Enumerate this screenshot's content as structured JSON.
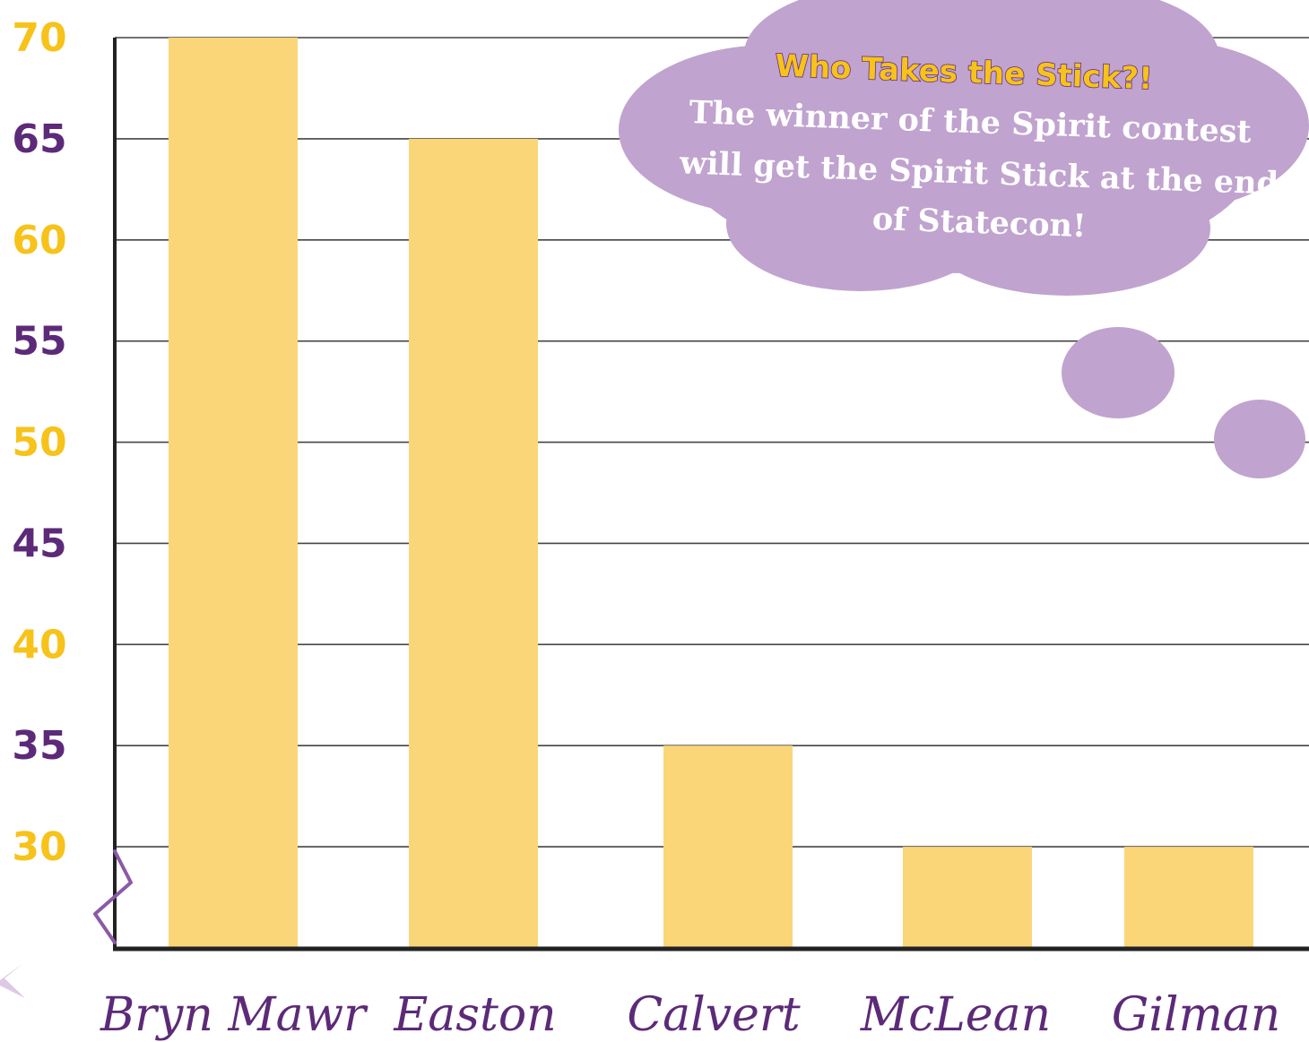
{
  "chart_data": {
    "type": "bar",
    "categories": [
      "Bryn Mawr",
      "Easton",
      "Calvert",
      "McLean",
      "Gilman"
    ],
    "values": [
      70,
      65,
      35,
      30,
      30
    ],
    "title": "",
    "xlabel": "",
    "ylabel": "",
    "ylim": [
      25,
      70
    ],
    "yticks": [
      30,
      35,
      40,
      45,
      50,
      55,
      60,
      65,
      70
    ],
    "grid": true,
    "legend": "none",
    "annotation": {
      "title": "Who Takes the Stick?!",
      "lines": [
        "The winner of the Spirit contest",
        "will get the Spirit Stick at the end",
        "of Statecon!"
      ]
    }
  },
  "colors": {
    "bar": "#fbd679",
    "tick_gold": "#f7c21a",
    "tick_purple": "#5c2a78",
    "category_text": "#5c2a78",
    "bubble": "#c0a3cf",
    "axis": "#222222",
    "grid": "#444444",
    "axis_break": "#8a5aa8",
    "star": "#ddc9e6"
  }
}
